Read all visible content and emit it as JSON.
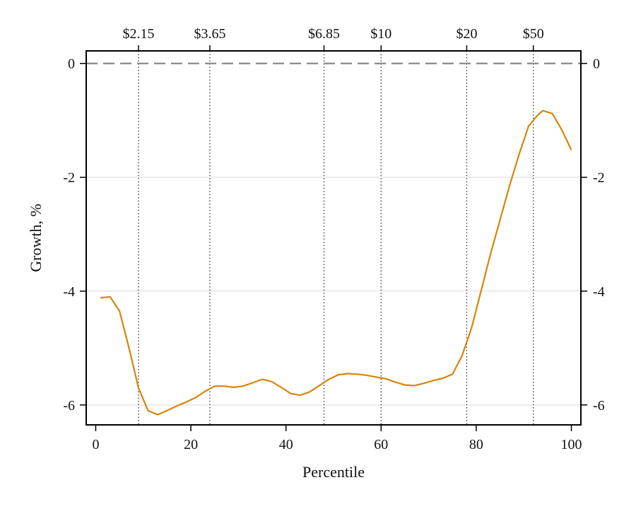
{
  "chart_data": {
    "type": "line",
    "xlabel": "Percentile",
    "ylabel": "Growth, %",
    "xlim": [
      -2,
      102
    ],
    "ylim": [
      -6.35,
      0.22
    ],
    "x_ticks": [
      0,
      20,
      40,
      60,
      80,
      100
    ],
    "y_ticks": [
      0,
      -2,
      -4,
      -6
    ],
    "y_grid": [
      -2,
      -4,
      -6
    ],
    "reference_line": {
      "y": 0,
      "style": "dashed"
    },
    "thresholds": [
      {
        "x": 9,
        "label": "$2.15"
      },
      {
        "x": 24,
        "label": "$3.65"
      },
      {
        "x": 48,
        "label": "$6.85"
      },
      {
        "x": 60,
        "label": "$10"
      },
      {
        "x": 78,
        "label": "$20"
      },
      {
        "x": 92,
        "label": "$50"
      }
    ],
    "line_color": "#d4860b",
    "series": [
      {
        "x": [
          1,
          3,
          5,
          7,
          9,
          11,
          13,
          15,
          17,
          19,
          21,
          23,
          25,
          27,
          29,
          31,
          33,
          35,
          37,
          39,
          41,
          43,
          45,
          47,
          49,
          51,
          53,
          55,
          57,
          59,
          61,
          63,
          65,
          67,
          69,
          71,
          73,
          75,
          77,
          79,
          81,
          83,
          85,
          87,
          89,
          91,
          93,
          94,
          96,
          98,
          100
        ],
        "values": [
          -4.12,
          -4.1,
          -4.35,
          -5.0,
          -5.7,
          -6.1,
          -6.17,
          -6.1,
          -6.02,
          -5.95,
          -5.87,
          -5.76,
          -5.67,
          -5.67,
          -5.69,
          -5.67,
          -5.61,
          -5.55,
          -5.59,
          -5.69,
          -5.8,
          -5.83,
          -5.77,
          -5.66,
          -5.55,
          -5.47,
          -5.45,
          -5.46,
          -5.48,
          -5.51,
          -5.54,
          -5.6,
          -5.65,
          -5.66,
          -5.62,
          -5.57,
          -5.53,
          -5.46,
          -5.14,
          -4.65,
          -4.0,
          -3.35,
          -2.75,
          -2.15,
          -1.6,
          -1.1,
          -0.9,
          -0.83,
          -0.88,
          -1.17,
          -1.52
        ]
      }
    ]
  }
}
